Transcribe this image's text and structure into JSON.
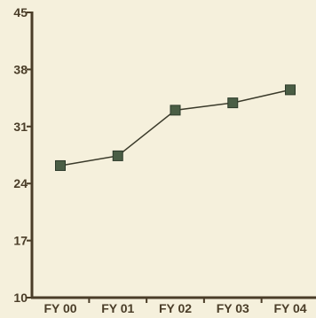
{
  "chart_data": {
    "type": "line",
    "categories": [
      "FY 00",
      "FY 01",
      "FY 02",
      "FY 03",
      "FY 04"
    ],
    "series": [
      {
        "values": [
          26.2,
          27.4,
          33.0,
          33.9,
          35.5
        ]
      }
    ],
    "y_ticks": [
      "45",
      "38",
      "31",
      "24",
      "17",
      "10"
    ],
    "ylim": [
      10,
      45
    ],
    "grid": false,
    "title": "",
    "xlabel": "",
    "ylabel": ""
  },
  "colors": {
    "background": "#f5f0dc",
    "axis": "#4a3d28",
    "tick_label": "#4a3d28",
    "line": "#3a3a2a",
    "marker_fill": "#4a5e45",
    "marker_stroke": "#2c3a2a"
  }
}
